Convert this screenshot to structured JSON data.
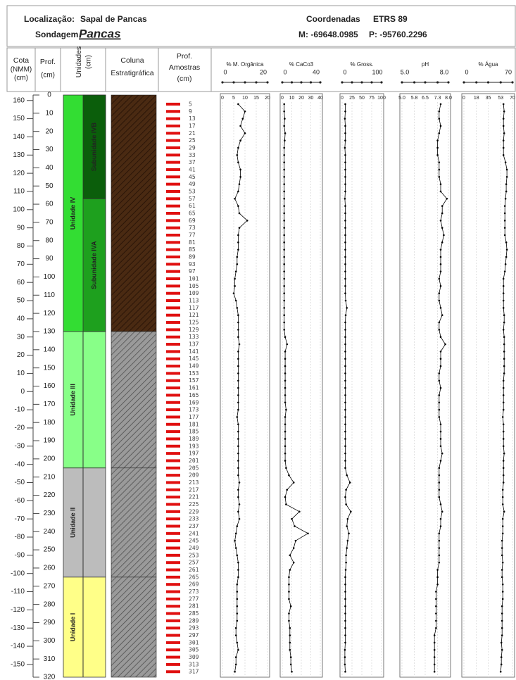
{
  "header": {
    "location_label": "Localização:",
    "location": "Sapal de Pancas",
    "sondagem_label": "Sondagem",
    "sondagem": "Pancas",
    "coords_label": "Coordenadas",
    "datum": "ETRS 89",
    "m": "M: -69648.0985",
    "p": "P: -95760.2296"
  },
  "columns": {
    "cota": [
      "Cota",
      "(NMM)",
      "(cm)"
    ],
    "prof": [
      "Prof.",
      "(cm)"
    ],
    "unidades": [
      "Unidades",
      "(cm)"
    ],
    "coluna": [
      "Coluna",
      "Estratigráfica"
    ],
    "amostras": [
      "Prof.",
      "Amostras",
      "(cm)"
    ]
  },
  "depth_axis": {
    "ylim": [
      0,
      320
    ],
    "yticks": [
      0,
      10,
      20,
      30,
      40,
      50,
      60,
      70,
      80,
      90,
      100,
      110,
      120,
      130,
      140,
      150,
      160,
      170,
      180,
      190,
      200,
      210,
      220,
      230,
      240,
      250,
      260,
      270,
      280,
      290,
      300,
      310,
      320
    ]
  },
  "cota_axis": {
    "ylim": [
      163,
      -157
    ],
    "yticks": [
      160,
      150,
      140,
      130,
      120,
      110,
      100,
      90,
      80,
      70,
      60,
      50,
      40,
      30,
      20,
      10,
      0,
      -10,
      -20,
      -30,
      -40,
      -50,
      -60,
      -70,
      -80,
      -90,
      -100,
      -110,
      -120,
      -130,
      -140,
      -150
    ]
  },
  "units": [
    {
      "label": "Unidade IV",
      "top": 0,
      "bottom": 130,
      "color": "#33dd33"
    },
    {
      "label": "Unidade III",
      "top": 130,
      "bottom": 205,
      "color": "#88ff88"
    },
    {
      "label": "Unidade II",
      "top": 205,
      "bottom": 265,
      "color": "#bcbcbc"
    },
    {
      "label": "Unidade I",
      "top": 265,
      "bottom": 320,
      "color": "#ffff88"
    }
  ],
  "subunits": [
    {
      "label": "Subunidade IVB",
      "top": 0,
      "bottom": 57,
      "color": "#0b5e0b"
    },
    {
      "label": "Subunidade IVA",
      "top": 57,
      "bottom": 130,
      "color": "#1ea01e"
    }
  ],
  "strata": [
    {
      "top": 0,
      "bottom": 130,
      "color": "#4a2a12"
    },
    {
      "top": 130,
      "bottom": 205,
      "color": "#8a8a8a"
    },
    {
      "top": 205,
      "bottom": 265,
      "color": "#8a8a8a"
    },
    {
      "top": 265,
      "bottom": 320,
      "color": "#8a8a8a"
    }
  ],
  "samples": [
    5,
    9,
    13,
    17,
    21,
    25,
    29,
    33,
    37,
    41,
    45,
    49,
    53,
    57,
    61,
    65,
    69,
    73,
    77,
    81,
    85,
    89,
    93,
    97,
    101,
    105,
    109,
    113,
    117,
    121,
    125,
    129,
    133,
    137,
    141,
    145,
    149,
    153,
    157,
    161,
    165,
    169,
    173,
    177,
    181,
    185,
    189,
    193,
    197,
    201,
    205,
    209,
    213,
    217,
    221,
    225,
    229,
    233,
    237,
    241,
    245,
    249,
    253,
    257,
    261,
    265,
    269,
    273,
    277,
    281,
    285,
    289,
    293,
    297,
    301,
    305,
    309,
    313,
    317
  ],
  "chart_data": [
    {
      "type": "line",
      "title": "% M. Orgânica",
      "xlim": [
        0,
        20
      ],
      "xticks": [
        0,
        5,
        10,
        15,
        20
      ],
      "color": "#000000",
      "grid": true,
      "values": [
        7,
        10,
        9,
        8,
        10,
        8,
        7,
        6.5,
        7,
        8,
        8,
        7.5,
        7,
        5.5,
        7,
        7.5,
        11,
        7.5,
        7,
        7,
        7,
        6.5,
        6.5,
        6,
        5.5,
        5.5,
        5,
        6,
        6.5,
        7,
        7,
        7,
        7,
        7.5,
        7,
        7,
        7,
        7,
        7,
        7,
        7,
        7,
        7,
        6.5,
        7,
        7,
        7,
        7,
        7,
        7,
        7,
        7,
        7.5,
        7,
        7,
        7.5,
        7,
        7.5,
        6.5,
        6,
        5.5,
        6,
        6.5,
        7,
        7,
        7,
        6.5,
        6.5,
        6.5,
        6.5,
        6.5,
        6.5,
        6,
        6,
        6.5,
        7,
        6,
        6,
        5.5
      ]
    },
    {
      "type": "line",
      "title": "% CaCo3",
      "xlim": [
        0,
        40
      ],
      "xticks": [
        0,
        10,
        20,
        30,
        40
      ],
      "color": "#000000",
      "grid": true,
      "values": [
        2,
        2,
        2.5,
        2,
        3,
        2.5,
        2,
        2,
        2,
        2,
        2,
        2,
        2,
        2,
        2,
        2,
        2,
        2,
        2,
        2,
        2,
        2,
        2,
        2,
        2,
        2,
        2,
        2,
        2,
        2,
        2,
        2,
        3,
        5,
        3,
        3,
        3,
        3,
        3,
        3,
        3,
        3,
        4,
        3,
        3,
        3,
        3,
        3,
        3,
        3,
        4,
        7,
        12,
        5,
        3,
        4,
        18,
        10,
        13,
        27,
        14,
        12,
        8,
        12,
        8,
        7,
        7,
        7,
        7,
        9,
        7,
        7,
        8,
        8,
        8,
        8,
        9,
        9,
        10
      ]
    },
    {
      "type": "line",
      "title": "% Gross.",
      "xlim": [
        0,
        100
      ],
      "xticks": [
        0,
        25,
        50,
        75,
        100
      ],
      "color": "#000000",
      "grid": true,
      "values": [
        8,
        8,
        7,
        8,
        8,
        8,
        7,
        8,
        8,
        8,
        8,
        8,
        8,
        7,
        8,
        8,
        8,
        8,
        8,
        8,
        8,
        8,
        8,
        8,
        8,
        8,
        8,
        9,
        12,
        9,
        8,
        8,
        8,
        8,
        8,
        8,
        8,
        8,
        8,
        8,
        8,
        8,
        8,
        8,
        8,
        8,
        8,
        8,
        8,
        8,
        8,
        12,
        20,
        10,
        8,
        10,
        22,
        14,
        12,
        17,
        14,
        12,
        10,
        10,
        9,
        8,
        8,
        8,
        8,
        8,
        8,
        8,
        8,
        8,
        8,
        7,
        7,
        7,
        8
      ]
    },
    {
      "type": "line",
      "title": "pH",
      "xlim": [
        5,
        8
      ],
      "xticks": [
        {
          "value": 5,
          "label": "5.0"
        },
        5.8,
        6.5,
        7.3,
        {
          "value": 8,
          "label": "8.0"
        }
      ],
      "color": "#000000",
      "grid": true,
      "values": [
        7.5,
        7.4,
        7.4,
        7.5,
        7.4,
        7.3,
        7.3,
        7.3,
        7.4,
        7.4,
        7.4,
        7.5,
        7.5,
        7.9,
        7.6,
        7.6,
        7.5,
        7.6,
        7.7,
        7.6,
        7.5,
        7.5,
        7.5,
        7.5,
        7.4,
        7.5,
        7.4,
        7.4,
        7.5,
        7.6,
        7.4,
        7.4,
        7.5,
        7.8,
        7.5,
        7.5,
        7.5,
        7.4,
        7.4,
        7.5,
        7.4,
        7.4,
        7.4,
        7.4,
        7.5,
        7.5,
        7.5,
        7.5,
        7.6,
        7.5,
        7.4,
        7.4,
        7.4,
        7.4,
        7.4,
        7.5,
        7.6,
        7.5,
        7.5,
        7.4,
        7.4,
        7.4,
        7.4,
        7.4,
        7.3,
        7.3,
        7.3,
        7.2,
        7.2,
        7.2,
        7.2,
        7.2,
        7.2,
        7.1,
        7.1,
        7.1,
        7.1,
        7.1,
        7.1
      ]
    },
    {
      "type": "line",
      "title": "% Água",
      "xlim": [
        0,
        70
      ],
      "xticks": [
        0,
        18,
        35,
        53,
        70
      ],
      "color": "#000000",
      "grid": true,
      "values": [
        57,
        58,
        57,
        57,
        58,
        57,
        57,
        57,
        60,
        62,
        62,
        61,
        61,
        60,
        59,
        59,
        59,
        59,
        59,
        61,
        62,
        61,
        60,
        59,
        57,
        57,
        57,
        57,
        57,
        58,
        58,
        57,
        58,
        58,
        58,
        58,
        58,
        58,
        57,
        57,
        57,
        57,
        57,
        56,
        57,
        57,
        57,
        57,
        58,
        57,
        57,
        57,
        57,
        56,
        56,
        56,
        58,
        56,
        56,
        56,
        55,
        55,
        55,
        56,
        55,
        55,
        56,
        56,
        56,
        55,
        55,
        55,
        55,
        55,
        54,
        55,
        54,
        54,
        53
      ]
    }
  ]
}
